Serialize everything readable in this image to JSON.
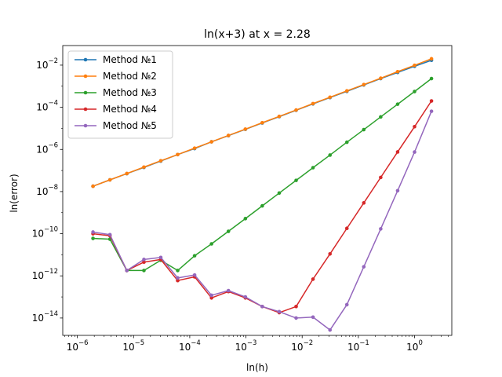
{
  "chart_data": {
    "type": "line",
    "title": "ln(x+3) at x = 2.28",
    "xlabel": "ln(h)",
    "ylabel": "ln(error)",
    "xscale": "log",
    "yscale": "log",
    "xlim": [
      5.5e-07,
      4.6
    ],
    "ylim": [
      1.5e-15,
      0.085
    ],
    "x_ticks": [
      {
        "value": 1e-06,
        "label": "10−6"
      },
      {
        "value": 1e-05,
        "label": "10−5"
      },
      {
        "value": 0.0001,
        "label": "10−4"
      },
      {
        "value": 0.001,
        "label": "10−3"
      },
      {
        "value": 0.01,
        "label": "10−2"
      },
      {
        "value": 0.1,
        "label": "10−1"
      },
      {
        "value": 1,
        "label": "100"
      }
    ],
    "y_ticks": [
      {
        "value": 1e-14,
        "label": "10−14"
      },
      {
        "value": 1e-12,
        "label": "10−12"
      },
      {
        "value": 1e-10,
        "label": "10−10"
      },
      {
        "value": 1e-08,
        "label": "10−8"
      },
      {
        "value": 1e-06,
        "label": "10−6"
      },
      {
        "value": 0.0001,
        "label": "10−4"
      },
      {
        "value": 0.01,
        "label": "10−2"
      }
    ],
    "grid": false,
    "legend_position": "upper-left",
    "x": [
      1.9e-06,
      3.8e-06,
      7.6e-06,
      1.53e-05,
      3.05e-05,
      6.1e-05,
      0.000122,
      0.000244,
      0.000488,
      0.000977,
      0.00195,
      0.00391,
      0.00781,
      0.0156,
      0.0313,
      0.0625,
      0.125,
      0.25,
      0.5,
      1.0,
      2.0
    ],
    "series": [
      {
        "name": "Method №1",
        "color": "#1f77b4",
        "values": [
          1.8e-08,
          3.6e-08,
          7.1e-08,
          1.4e-07,
          2.8e-07,
          5.7e-07,
          1.1e-06,
          2.3e-06,
          4.5e-06,
          9e-06,
          1.8e-05,
          3.6e-05,
          7.2e-05,
          0.000145,
          0.00029,
          0.00057,
          0.00115,
          0.0023,
          0.0045,
          0.0088,
          0.017
        ]
      },
      {
        "name": "Method №2",
        "color": "#ff7f0e",
        "values": [
          1.8e-08,
          3.6e-08,
          7.2e-08,
          1.45e-07,
          2.9e-07,
          5.7e-07,
          1.15e-06,
          2.3e-06,
          4.6e-06,
          9.2e-06,
          1.85e-05,
          3.7e-05,
          7.4e-05,
          0.00015,
          0.0003,
          0.0006,
          0.0012,
          0.0024,
          0.0049,
          0.0098,
          0.02
        ]
      },
      {
        "name": "Method №3",
        "color": "#2ca02c",
        "values": [
          6e-11,
          5.5e-11,
          1.8e-12,
          1.8e-12,
          5.5e-12,
          1.8e-12,
          9e-12,
          3.3e-11,
          1.3e-10,
          5.2e-10,
          2.1e-09,
          8.5e-09,
          3.4e-08,
          1.36e-07,
          5.4e-07,
          2.2e-06,
          8.7e-06,
          3.5e-05,
          0.00014,
          0.00056,
          0.0023
        ]
      },
      {
        "name": "Method №4",
        "color": "#d62728",
        "values": [
          1e-10,
          8e-11,
          1.8e-12,
          4.5e-12,
          6e-12,
          6e-13,
          9e-13,
          9e-14,
          1.8e-13,
          9e-14,
          3.5e-14,
          1.8e-14,
          3.5e-14,
          7e-13,
          1.1e-11,
          1.8e-10,
          2.9e-09,
          4.7e-08,
          7.6e-07,
          1.2e-05,
          0.0002
        ]
      },
      {
        "name": "Method №5",
        "color": "#9467bd",
        "values": [
          1.2e-10,
          9e-11,
          1.8e-12,
          6e-12,
          7.5e-12,
          8e-13,
          1.1e-12,
          1.2e-13,
          2e-13,
          1e-13,
          3.5e-14,
          2e-14,
          1e-14,
          1.1e-14,
          2.7e-15,
          4.3e-14,
          2.7e-12,
          1.7e-10,
          1.1e-08,
          7.5e-07,
          6.5e-05
        ]
      }
    ]
  }
}
